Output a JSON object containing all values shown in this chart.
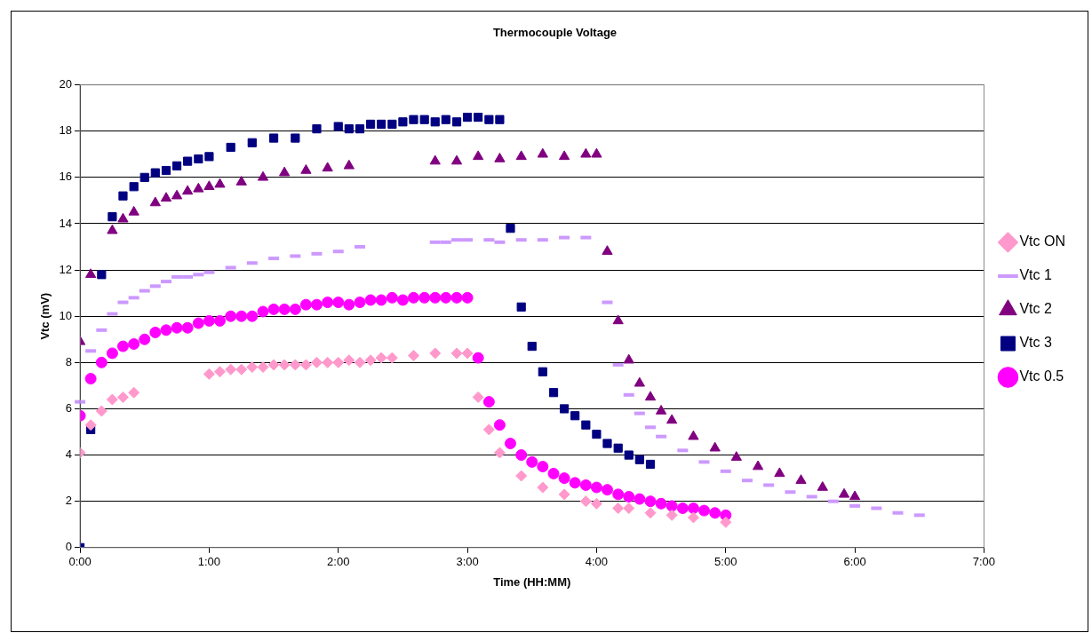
{
  "chart_data": {
    "type": "scatter",
    "title": "Thermocouple Voltage",
    "xlabel": "Time (HH:MM)",
    "ylabel": "Vtc (mV)",
    "xlim": [
      0,
      7
    ],
    "xticks": [
      {
        "value": 0,
        "label": "0:00"
      },
      {
        "value": 1,
        "label": "1:00"
      },
      {
        "value": 2,
        "label": "2:00"
      },
      {
        "value": 3,
        "label": "3:00"
      },
      {
        "value": 4,
        "label": "4:00"
      },
      {
        "value": 5,
        "label": "5:00"
      },
      {
        "value": 6,
        "label": "6:00"
      },
      {
        "value": 7,
        "label": "7:00"
      }
    ],
    "ylim": [
      0,
      20
    ],
    "yticks": [
      0,
      2,
      4,
      6,
      8,
      10,
      12,
      14,
      16,
      18,
      20
    ],
    "grid": "y",
    "legend": "right",
    "series": [
      {
        "name": "Vtc ON",
        "color": "#ff99cc",
        "marker": "diamond",
        "x": [
          0,
          0.083,
          0.167,
          0.25,
          0.333,
          0.417,
          1.0,
          1.083,
          1.167,
          1.25,
          1.333,
          1.417,
          1.5,
          1.583,
          1.667,
          1.75,
          1.833,
          1.917,
          2.0,
          2.083,
          2.167,
          2.25,
          2.333,
          2.417,
          2.583,
          2.75,
          2.917,
          3.0,
          3.083,
          3.167,
          3.25,
          3.417,
          3.583,
          3.75,
          3.917,
          4.0,
          4.167,
          4.25,
          4.417,
          4.583,
          4.75,
          5.0
        ],
        "values": [
          4.1,
          5.3,
          5.9,
          6.4,
          6.5,
          6.7,
          7.5,
          7.6,
          7.7,
          7.7,
          7.8,
          7.8,
          7.9,
          7.9,
          7.9,
          7.9,
          8.0,
          8.0,
          8.0,
          8.1,
          8.0,
          8.1,
          8.2,
          8.2,
          8.3,
          8.4,
          8.4,
          8.4,
          6.5,
          5.1,
          4.1,
          3.1,
          2.6,
          2.3,
          2.0,
          1.9,
          1.7,
          1.7,
          1.5,
          1.4,
          1.3,
          1.1
        ]
      },
      {
        "name": "Vtc 1",
        "color": "#cc99ff",
        "x": [
          0,
          0.083,
          0.167,
          0.25,
          0.333,
          0.417,
          0.5,
          0.583,
          0.667,
          0.75,
          0.833,
          0.917,
          1.0,
          1.167,
          1.333,
          1.5,
          1.667,
          1.833,
          2.0,
          2.167,
          2.75,
          2.833,
          2.917,
          3.0,
          3.167,
          3.25,
          3.417,
          3.583,
          3.75,
          3.917,
          4.083,
          4.167,
          4.25,
          4.333,
          4.417,
          4.5,
          4.667,
          4.833,
          5.0,
          5.167,
          5.333,
          5.5,
          5.667,
          5.833,
          6.0,
          6.167,
          6.333,
          6.5
        ],
        "values": [
          6.3,
          8.5,
          9.4,
          10.1,
          10.6,
          10.8,
          11.1,
          11.3,
          11.5,
          11.7,
          11.7,
          11.8,
          11.9,
          12.1,
          12.3,
          12.5,
          12.6,
          12.7,
          12.8,
          13.0,
          13.2,
          13.2,
          13.3,
          13.3,
          13.3,
          13.2,
          13.3,
          13.3,
          13.4,
          13.4,
          10.6,
          7.9,
          6.6,
          5.8,
          5.2,
          4.8,
          4.2,
          3.7,
          3.3,
          2.9,
          2.7,
          2.4,
          2.2,
          2.0,
          1.8,
          1.7,
          1.5,
          1.4
        ]
      },
      {
        "name": "Vtc 2",
        "color": "#800080",
        "marker": "triangle",
        "x": [
          0,
          0.083,
          0.25,
          0.333,
          0.417,
          0.583,
          0.667,
          0.75,
          0.833,
          0.917,
          1.0,
          1.083,
          1.25,
          1.417,
          1.583,
          1.75,
          1.917,
          2.083,
          2.75,
          2.917,
          3.083,
          3.25,
          3.417,
          3.583,
          3.75,
          3.917,
          4.0,
          4.083,
          4.167,
          4.25,
          4.333,
          4.417,
          4.5,
          4.583,
          4.75,
          4.917,
          5.083,
          5.25,
          5.417,
          5.583,
          5.75,
          5.917,
          6.0
        ],
        "values": [
          8.9,
          11.8,
          13.7,
          14.2,
          14.5,
          14.9,
          15.1,
          15.2,
          15.4,
          15.5,
          15.6,
          15.7,
          15.8,
          16.0,
          16.2,
          16.3,
          16.4,
          16.5,
          16.7,
          16.7,
          16.9,
          16.8,
          16.9,
          17.0,
          16.9,
          17.0,
          17.0,
          12.8,
          9.8,
          8.1,
          7.1,
          6.5,
          5.9,
          5.5,
          4.8,
          4.3,
          3.9,
          3.5,
          3.2,
          2.9,
          2.6,
          2.3,
          2.2
        ]
      },
      {
        "name": "Vtc 3",
        "color": "#000080",
        "marker": "square",
        "x": [
          0,
          0.083,
          0.167,
          0.25,
          0.333,
          0.417,
          0.5,
          0.583,
          0.667,
          0.75,
          0.833,
          0.917,
          1.0,
          1.167,
          1.333,
          1.5,
          1.667,
          1.833,
          2.0,
          2.083,
          2.167,
          2.25,
          2.333,
          2.417,
          2.5,
          2.583,
          2.667,
          2.75,
          2.833,
          2.917,
          3.0,
          3.083,
          3.167,
          3.25,
          3.333,
          3.417,
          3.5,
          3.583,
          3.667,
          3.75,
          3.833,
          3.917,
          4.0,
          4.083,
          4.167,
          4.25,
          4.333,
          4.417
        ],
        "values": [
          0,
          5.1,
          11.8,
          14.3,
          15.2,
          15.6,
          16.0,
          16.2,
          16.3,
          16.5,
          16.7,
          16.8,
          16.9,
          17.3,
          17.5,
          17.7,
          17.7,
          18.1,
          18.2,
          18.1,
          18.1,
          18.3,
          18.3,
          18.3,
          18.4,
          18.5,
          18.5,
          18.4,
          18.5,
          18.4,
          18.6,
          18.6,
          18.5,
          18.5,
          13.8,
          10.4,
          8.7,
          7.6,
          6.7,
          6.0,
          5.7,
          5.3,
          4.9,
          4.5,
          4.3,
          4.0,
          3.8,
          3.6
        ]
      },
      {
        "name": "Vtc 0.5",
        "color": "#ff00ff",
        "marker": "circle",
        "x": [
          0,
          0.083,
          0.167,
          0.25,
          0.333,
          0.417,
          0.5,
          0.583,
          0.667,
          0.75,
          0.833,
          0.917,
          1.0,
          1.083,
          1.167,
          1.25,
          1.333,
          1.417,
          1.5,
          1.583,
          1.667,
          1.75,
          1.833,
          1.917,
          2.0,
          2.083,
          2.167,
          2.25,
          2.333,
          2.417,
          2.5,
          2.583,
          2.667,
          2.75,
          2.833,
          2.917,
          3.0,
          3.083,
          3.167,
          3.25,
          3.333,
          3.417,
          3.5,
          3.583,
          3.667,
          3.75,
          3.833,
          3.917,
          4.0,
          4.083,
          4.167,
          4.25,
          4.333,
          4.417,
          4.5,
          4.583,
          4.667,
          4.75,
          4.833,
          4.917,
          5.0
        ],
        "values": [
          5.7,
          7.3,
          8.0,
          8.4,
          8.7,
          8.8,
          9.0,
          9.3,
          9.4,
          9.5,
          9.5,
          9.7,
          9.8,
          9.8,
          10.0,
          10.0,
          10.0,
          10.2,
          10.3,
          10.3,
          10.3,
          10.5,
          10.5,
          10.6,
          10.6,
          10.5,
          10.6,
          10.7,
          10.7,
          10.8,
          10.7,
          10.8,
          10.8,
          10.8,
          10.8,
          10.8,
          10.8,
          8.2,
          6.3,
          5.3,
          4.5,
          4.0,
          3.7,
          3.5,
          3.2,
          3.0,
          2.8,
          2.7,
          2.6,
          2.5,
          2.3,
          2.2,
          2.1,
          2.0,
          1.9,
          1.8,
          1.7,
          1.7,
          1.6,
          1.5,
          1.4
        ]
      }
    ]
  }
}
